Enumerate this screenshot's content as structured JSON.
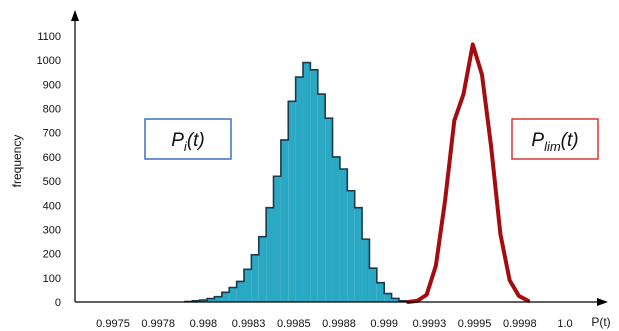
{
  "chart_data": {
    "type": "area",
    "xlabel": "P(t)",
    "ylabel": "frequency",
    "ylim": [
      0,
      1100
    ],
    "yticks": [
      0,
      100,
      200,
      300,
      400,
      500,
      600,
      700,
      800,
      900,
      1000,
      1100
    ],
    "xtick_labels": [
      "0.9975",
      "0.9978",
      "0.998",
      "0.9983",
      "0.9985",
      "0.9988",
      "0.999",
      "0.9993",
      "0.9995",
      "0.9998",
      "1.0"
    ],
    "grid": false,
    "series": [
      {
        "name": "P_i(t)",
        "style": "histogram",
        "color": "#2aa8c4",
        "edge_color": "#1c3a4c",
        "x": [
          0.99796,
          0.998,
          0.99804,
          0.99808,
          0.99812,
          0.99816,
          0.9982,
          0.99824,
          0.99828,
          0.99832,
          0.99836,
          0.9984,
          0.99844,
          0.99848,
          0.99852,
          0.99856,
          0.9986,
          0.99864,
          0.99868,
          0.99872,
          0.99876,
          0.9988,
          0.99884,
          0.99888,
          0.99892,
          0.99896,
          0.999,
          0.99904,
          0.99908,
          0.99912
        ],
        "values": [
          2,
          5,
          8,
          14,
          22,
          40,
          60,
          85,
          135,
          195,
          270,
          390,
          520,
          670,
          830,
          930,
          990,
          960,
          860,
          760,
          600,
          550,
          460,
          390,
          260,
          140,
          80,
          35,
          15,
          5
        ]
      },
      {
        "name": "P_lim(t)",
        "style": "line",
        "color": "#a30d10",
        "x": [
          0.99915,
          0.9992,
          0.99925,
          0.9993,
          0.99935,
          0.9994,
          0.99945,
          0.9995,
          0.99955,
          0.9996,
          0.99965,
          0.9997,
          0.99975,
          0.9998
        ],
        "values": [
          0,
          5,
          30,
          150,
          420,
          750,
          860,
          1065,
          940,
          640,
          280,
          90,
          25,
          5
        ]
      }
    ],
    "legend": [
      {
        "base": "P",
        "sub": "i",
        "suffix": "(t)",
        "border_color": "#2e66c0"
      },
      {
        "base": "P",
        "sub": "lim",
        "suffix": "(t)",
        "border_color": "#d42b27"
      }
    ]
  }
}
